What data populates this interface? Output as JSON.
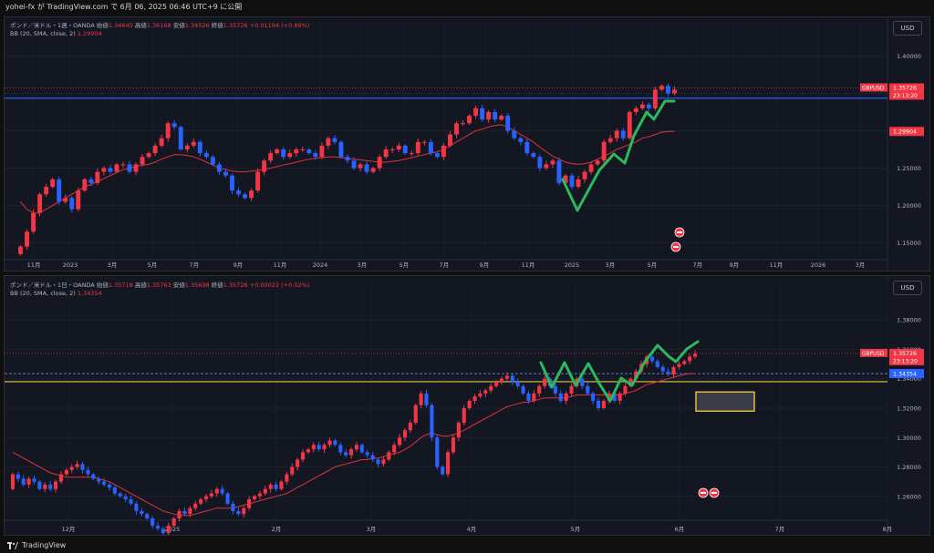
{
  "header": {
    "publisher": "yohei-fx が TradingView.com で 6月 06, 2025 06:46 UTC+9 に公開"
  },
  "footer": {
    "brand": "TradingView"
  },
  "colors": {
    "up": "#f23645",
    "down": "#2962ff",
    "bb": "#e0303d",
    "support": "#e8c73e",
    "resistance": "#2962ff",
    "wave": "#2eb85c",
    "box": "#e8c73e"
  },
  "panes": [
    {
      "id": "weekly",
      "legend": {
        "title": "ポンド／米ドル・1週・OANDA",
        "open_label": "始値",
        "open": "1.34645",
        "high_label": "高値",
        "high": "1.36168",
        "low_label": "安値",
        "low": "1.34526",
        "close_label": "終値",
        "close": "1.35726",
        "change": "+0.01194 (+0.89%)",
        "indicator": "BB (20, SMA, close, 2)",
        "indicator_value": "1.29904"
      },
      "currency_button": "USD",
      "symbol_tag": "GBPUSD",
      "last_price": "1.35726",
      "countdown": "23:13:20",
      "bb_tag": "1.29904",
      "axis_labels": [
        "1.40000",
        "1.35000",
        "1.30000",
        "1.25000",
        "1.20000",
        "1.15000"
      ],
      "time_labels": [
        "11月",
        "2023",
        "3月",
        "5月",
        "7月",
        "9月",
        "11月",
        "2024",
        "3月",
        "5月",
        "7月",
        "9月",
        "11月",
        "2025",
        "3月",
        "5月",
        "7月",
        "9月",
        "11月",
        "2026",
        "3月"
      ],
      "event_icons": [
        "flag-icon",
        "us-flag-icon"
      ]
    },
    {
      "id": "daily",
      "legend": {
        "title": "ポンド／米ドル・1日・OANDA",
        "open_label": "始値",
        "open": "1.35718",
        "high_label": "高値",
        "high": "1.35763",
        "low_label": "安値",
        "low": "1.35698",
        "close_label": "終値",
        "close": "1.35726",
        "change": "+0.00022 (+0.02%)",
        "indicator": "BB (20, SMA, close, 2)",
        "indicator_value": "1.34354"
      },
      "currency_button": "USD",
      "symbol_tag": "GBPUSD",
      "last_price": "1.35726",
      "countdown": "23:13:20",
      "bb_tag": "1.34354",
      "axis_labels": [
        "1.38000",
        "1.36000",
        "1.34000",
        "1.32000",
        "1.30000",
        "1.28000",
        "1.26000"
      ],
      "time_labels": [
        "12月",
        "2025",
        "2月",
        "3月",
        "4月",
        "5月",
        "6月",
        "7月",
        "8月"
      ],
      "event_icons": [
        "us-flag-icon",
        "uk-flag-icon"
      ]
    }
  ],
  "chart_data": [
    {
      "type": "candlestick",
      "title": "ポンド／米ドル・1週・OANDA",
      "ylim": [
        1.13,
        1.42
      ],
      "key_price_levels": [
        1.3435
      ],
      "last": 1.35726,
      "series": [
        {
          "name": "GBPUSD",
          "close": [
            1.145,
            1.165,
            1.19,
            1.215,
            1.225,
            1.235,
            1.205,
            1.21,
            1.195,
            1.22,
            1.235,
            1.23,
            1.245,
            1.25,
            1.245,
            1.255,
            1.255,
            1.245,
            1.255,
            1.265,
            1.27,
            1.28,
            1.29,
            1.31,
            1.305,
            1.275,
            1.28,
            1.285,
            1.27,
            1.265,
            1.255,
            1.245,
            1.24,
            1.22,
            1.215,
            1.21,
            1.22,
            1.245,
            1.26,
            1.27,
            1.275,
            1.265,
            1.27,
            1.275,
            1.275,
            1.27,
            1.265,
            1.28,
            1.29,
            1.285,
            1.265,
            1.26,
            1.25,
            1.255,
            1.245,
            1.25,
            1.265,
            1.275,
            1.275,
            1.28,
            1.27,
            1.27,
            1.285,
            1.285,
            1.27,
            1.265,
            1.28,
            1.295,
            1.31,
            1.31,
            1.32,
            1.33,
            1.315,
            1.325,
            1.315,
            1.32,
            1.3,
            1.29,
            1.285,
            1.27,
            1.265,
            1.25,
            1.255,
            1.26,
            1.23,
            1.24,
            1.225,
            1.235,
            1.245,
            1.255,
            1.26,
            1.285,
            1.29,
            1.3,
            1.29,
            1.325,
            1.33,
            1.335,
            1.33,
            1.355,
            1.36,
            1.35,
            1.355
          ]
        },
        {
          "name": "BB mid",
          "values": [
            1.205,
            1.195,
            1.19,
            1.19,
            1.195,
            1.2,
            1.205,
            1.21,
            1.215,
            1.22,
            1.225,
            1.228,
            1.232,
            1.236,
            1.24,
            1.244,
            1.248,
            1.25,
            1.252,
            1.254,
            1.255,
            1.258,
            1.262,
            1.265,
            1.268,
            1.268,
            1.267,
            1.265,
            1.262,
            1.258,
            1.254,
            1.25,
            1.248,
            1.246,
            1.245,
            1.245,
            1.246,
            1.247,
            1.248,
            1.25,
            1.252,
            1.254,
            1.256,
            1.258,
            1.26,
            1.262,
            1.263,
            1.264,
            1.265,
            1.265,
            1.264,
            1.263,
            1.262,
            1.261,
            1.26,
            1.259,
            1.258,
            1.258,
            1.259,
            1.26,
            1.262,
            1.264,
            1.266,
            1.268,
            1.27,
            1.272,
            1.275,
            1.28,
            1.285,
            1.29,
            1.295,
            1.3,
            1.302,
            1.305,
            1.307,
            1.308,
            1.305,
            1.3,
            1.295,
            1.29,
            1.285,
            1.278,
            1.272,
            1.266,
            1.262,
            1.258,
            1.256,
            1.255,
            1.256,
            1.258,
            1.262,
            1.266,
            1.27,
            1.275,
            1.278,
            1.282,
            1.285,
            1.29,
            1.292,
            1.295,
            1.298,
            1.299,
            1.299
          ]
        }
      ]
    },
    {
      "type": "candlestick",
      "title": "ポンド／米ドル・1日・OANDA",
      "ylim": [
        1.245,
        1.395
      ],
      "key_price_levels": [
        1.3435,
        1.338
      ],
      "target_zone": [
        1.318,
        1.331
      ],
      "last": 1.35726,
      "series": [
        {
          "name": "GBPUSD",
          "close": [
            1.275,
            1.272,
            1.268,
            1.272,
            1.27,
            1.265,
            1.268,
            1.265,
            1.27,
            1.275,
            1.278,
            1.28,
            1.282,
            1.278,
            1.275,
            1.272,
            1.27,
            1.268,
            1.266,
            1.262,
            1.26,
            1.258,
            1.255,
            1.25,
            1.248,
            1.245,
            1.24,
            1.238,
            1.235,
            1.24,
            1.245,
            1.25,
            1.248,
            1.252,
            1.255,
            1.258,
            1.26,
            1.262,
            1.265,
            1.262,
            1.255,
            1.25,
            1.248,
            1.252,
            1.258,
            1.26,
            1.262,
            1.265,
            1.268,
            1.265,
            1.27,
            1.275,
            1.28,
            1.285,
            1.29,
            1.292,
            1.295,
            1.292,
            1.295,
            1.298,
            1.295,
            1.29,
            1.288,
            1.292,
            1.295,
            1.29,
            1.288,
            1.285,
            1.282,
            1.285,
            1.29,
            1.295,
            1.3,
            1.305,
            1.31,
            1.322,
            1.33,
            1.322,
            1.3,
            1.28,
            1.275,
            1.29,
            1.3,
            1.31,
            1.32,
            1.325,
            1.328,
            1.33,
            1.332,
            1.335,
            1.338,
            1.34,
            1.342,
            1.338,
            1.335,
            1.33,
            1.325,
            1.33,
            1.335,
            1.34,
            1.335,
            1.33,
            1.325,
            1.33,
            1.335,
            1.34,
            1.335,
            1.33,
            1.325,
            1.32,
            1.325,
            1.33,
            1.325,
            1.33,
            1.335,
            1.34,
            1.345,
            1.35,
            1.355,
            1.352,
            1.348,
            1.345,
            1.343,
            1.348,
            1.35,
            1.352,
            1.355,
            1.357
          ]
        },
        {
          "name": "BB mid",
          "values": [
            1.29,
            1.288,
            1.286,
            1.284,
            1.282,
            1.28,
            1.278,
            1.276,
            1.275,
            1.274,
            1.273,
            1.273,
            1.273,
            1.273,
            1.273,
            1.273,
            1.272,
            1.271,
            1.27,
            1.268,
            1.266,
            1.264,
            1.262,
            1.26,
            1.258,
            1.256,
            1.254,
            1.252,
            1.25,
            1.249,
            1.248,
            1.247,
            1.247,
            1.247,
            1.248,
            1.249,
            1.25,
            1.251,
            1.252,
            1.252,
            1.252,
            1.252,
            1.253,
            1.254,
            1.255,
            1.256,
            1.257,
            1.258,
            1.259,
            1.26,
            1.261,
            1.262,
            1.264,
            1.266,
            1.268,
            1.27,
            1.272,
            1.274,
            1.276,
            1.278,
            1.28,
            1.281,
            1.282,
            1.283,
            1.284,
            1.285,
            1.285,
            1.286,
            1.286,
            1.287,
            1.288,
            1.289,
            1.29,
            1.292,
            1.294,
            1.297,
            1.3,
            1.302,
            1.303,
            1.302,
            1.301,
            1.301,
            1.302,
            1.303,
            1.305,
            1.307,
            1.309,
            1.311,
            1.313,
            1.315,
            1.317,
            1.319,
            1.321,
            1.322,
            1.323,
            1.324,
            1.324,
            1.325,
            1.326,
            1.327,
            1.327,
            1.327,
            1.327,
            1.327,
            1.328,
            1.329,
            1.329,
            1.329,
            1.329,
            1.329,
            1.329,
            1.329,
            1.329,
            1.329,
            1.33,
            1.331,
            1.332,
            1.334,
            1.336,
            1.337,
            1.338,
            1.339,
            1.34,
            1.341,
            1.342,
            1.343,
            1.3435,
            1.3435
          ]
        }
      ]
    }
  ]
}
